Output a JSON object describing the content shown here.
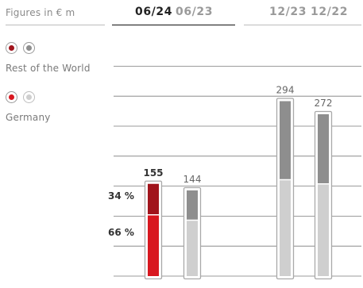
{
  "units_label": "Figures in € m",
  "column_groups": [
    {
      "labels": [
        "06/24",
        "06/23"
      ]
    },
    {
      "labels": [
        "12/23",
        "12/22"
      ]
    }
  ],
  "legend": [
    {
      "name": "Rest of the World",
      "colors": [
        "#a1141c",
        "#8e8e8e"
      ]
    },
    {
      "name": "Germany",
      "colors": [
        "#d8171f",
        "#cfcfcf"
      ]
    }
  ],
  "colors": {
    "rest_current": "#a1141c",
    "germany_current": "#d8171f",
    "rest_prior": "#8e8e8e",
    "germany_prior": "#cfcfcf",
    "header_current": "#222222",
    "header_prior": "#9a9a9a",
    "gridline": "#7a7a7a"
  },
  "percent_labels": {
    "rest": "34 %",
    "germany": "66 %"
  },
  "chart_data": {
    "type": "bar",
    "stacked": true,
    "categories": [
      "06/24",
      "06/23",
      "12/23",
      "12/22"
    ],
    "totals": [
      155,
      144,
      294,
      272
    ],
    "series": [
      {
        "name": "Germany",
        "values": [
          102,
          93,
          161,
          154
        ]
      },
      {
        "name": "Rest of the World",
        "values": [
          53,
          51,
          133,
          118
        ]
      }
    ],
    "percent_labels_for": "06/24",
    "ylim": [
      0,
      300
    ],
    "grid": true,
    "legend_position": "top-left"
  }
}
